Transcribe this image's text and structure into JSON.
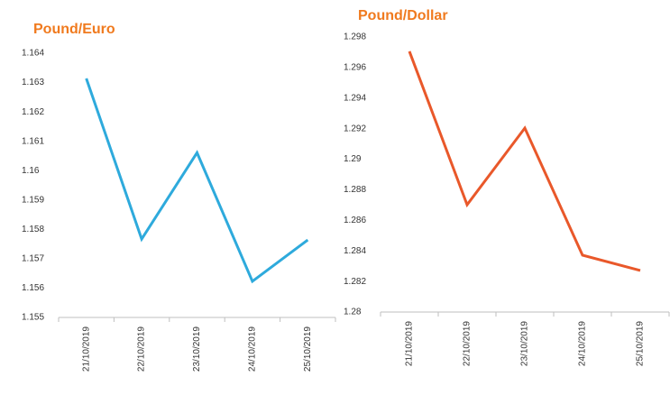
{
  "chart_data": [
    {
      "type": "line",
      "title": "Pound/Euro",
      "categories": [
        "21/10/2019",
        "22/10/2019",
        "23/10/2019",
        "24/10/2019",
        "25/10/2019"
      ],
      "values": [
        1.16314,
        1.15767,
        1.16061,
        1.15623,
        1.15764
      ],
      "color": "#2eaadc",
      "ylim": [
        1.155,
        1.164
      ],
      "yticks": [
        1.155,
        1.156,
        1.157,
        1.158,
        1.159,
        1.16,
        1.161,
        1.162,
        1.163,
        1.164
      ]
    },
    {
      "type": "line",
      "title": "Pound/Dollar",
      "categories": [
        "21/10/2019",
        "22/10/2019",
        "23/10/2019",
        "24/10/2019",
        "25/10/2019"
      ],
      "values": [
        1.29706,
        1.28702,
        1.29204,
        1.28372,
        1.28272
      ],
      "color": "#e9582a",
      "ylim": [
        1.28,
        1.298
      ],
      "yticks": [
        1.28,
        1.282,
        1.284,
        1.286,
        1.288,
        1.29,
        1.292,
        1.294,
        1.296,
        1.298
      ]
    }
  ]
}
